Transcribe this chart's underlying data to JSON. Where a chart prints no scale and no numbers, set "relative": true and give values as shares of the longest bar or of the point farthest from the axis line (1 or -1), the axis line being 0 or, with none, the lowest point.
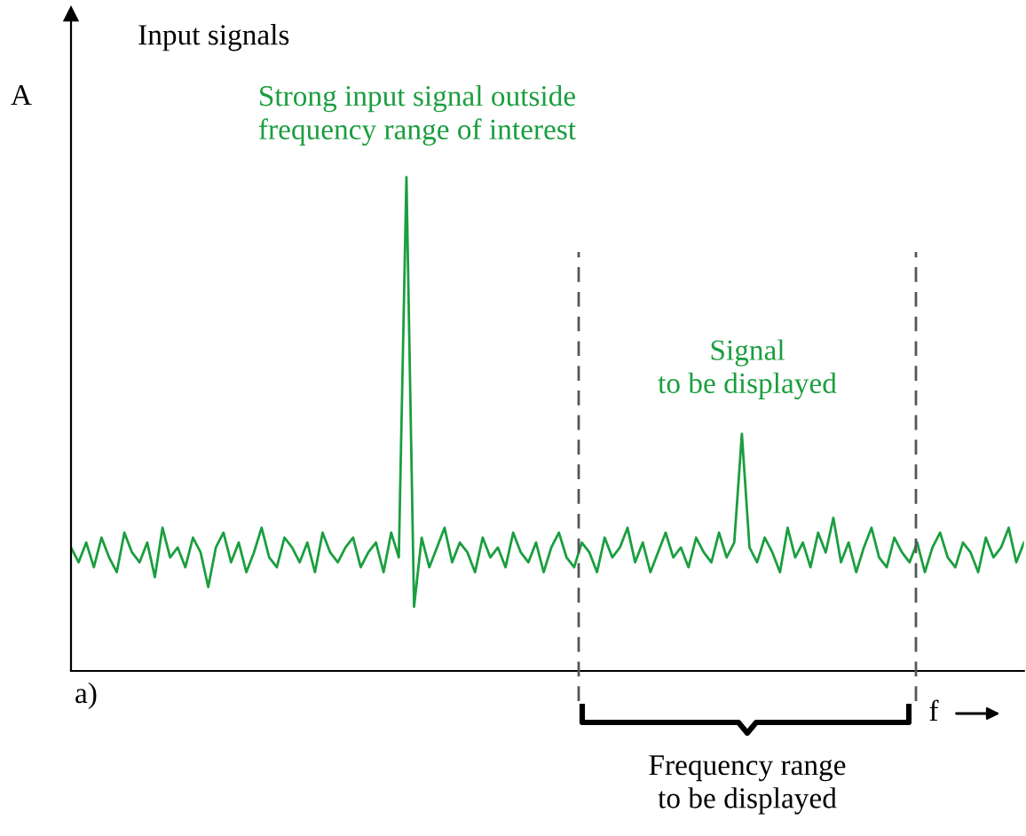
{
  "chart_data": {
    "type": "line",
    "relative": true,
    "title": "Input signals",
    "ylabel": "A",
    "xlabel": "f",
    "tick_labels": false,
    "marker": "none",
    "line_style": "solid",
    "categories": [
      null,
      null,
      null,
      null,
      null,
      null,
      null,
      null,
      null,
      null,
      null,
      null,
      null,
      null,
      null,
      null,
      null,
      null,
      null,
      null,
      null,
      null,
      null,
      null,
      null,
      null,
      null,
      null,
      null,
      null,
      null,
      null,
      null,
      null,
      null,
      null,
      null,
      null,
      null,
      null,
      null,
      null,
      null,
      null,
      null,
      null,
      null,
      null,
      null,
      null,
      null,
      null,
      null,
      null,
      null,
      null,
      null,
      null,
      null,
      null,
      null,
      null,
      null,
      null,
      null,
      null,
      null,
      null,
      null,
      null,
      null,
      null,
      null,
      null,
      null,
      null,
      null,
      null,
      null,
      null,
      null,
      null,
      null,
      null,
      null,
      null,
      null,
      null,
      null,
      null,
      null,
      null,
      null,
      null,
      null,
      null,
      null,
      null,
      null,
      null,
      null,
      null,
      null,
      null,
      null,
      null,
      null,
      null,
      null,
      null,
      null,
      null,
      null,
      null,
      null,
      null,
      null,
      null,
      null,
      null,
      null,
      null,
      null,
      null,
      null,
      null
    ],
    "series": [
      {
        "color": "#1a9e3f",
        "values": [
          0.25,
          0.22,
          0.26,
          0.21,
          0.27,
          0.23,
          0.2,
          0.28,
          0.24,
          0.22,
          0.26,
          0.19,
          0.29,
          0.23,
          0.25,
          0.21,
          0.27,
          0.24,
          0.17,
          0.25,
          0.28,
          0.22,
          0.26,
          0.2,
          0.24,
          0.29,
          0.23,
          0.21,
          0.27,
          0.25,
          0.22,
          0.26,
          0.2,
          0.28,
          0.24,
          0.22,
          0.25,
          0.27,
          0.21,
          0.24,
          0.26,
          0.2,
          0.28,
          0.23,
          1.0,
          0.13,
          0.27,
          0.21,
          0.25,
          0.29,
          0.22,
          0.26,
          0.24,
          0.2,
          0.27,
          0.23,
          0.25,
          0.21,
          0.28,
          0.24,
          0.22,
          0.26,
          0.2,
          0.25,
          0.28,
          0.23,
          0.21,
          0.26,
          0.24,
          0.2,
          0.27,
          0.23,
          0.25,
          0.29,
          0.22,
          0.26,
          0.2,
          0.24,
          0.28,
          0.23,
          0.25,
          0.21,
          0.27,
          0.24,
          0.22,
          0.28,
          0.23,
          0.26,
          0.48,
          0.25,
          0.22,
          0.27,
          0.24,
          0.2,
          0.29,
          0.23,
          0.26,
          0.21,
          0.28,
          0.24,
          0.31,
          0.22,
          0.26,
          0.2,
          0.25,
          0.29,
          0.23,
          0.21,
          0.27,
          0.24,
          0.22,
          0.26,
          0.2,
          0.25,
          0.28,
          0.23,
          0.21,
          0.26,
          0.24,
          0.2,
          0.27,
          0.23,
          0.25,
          0.29,
          0.22,
          0.26
        ]
      }
    ],
    "annotations": [
      "Strong input signal outside\nfrequency range of interest",
      "Signal\nto be displayed",
      "a)",
      "Frequency range\nto be displayed"
    ]
  }
}
